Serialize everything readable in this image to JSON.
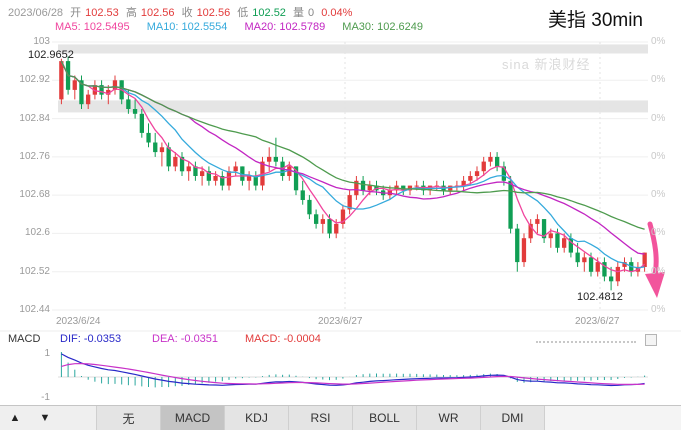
{
  "header": {
    "date": "2023/06/28",
    "open_label": "开",
    "open": "102.53",
    "high_label": "高",
    "high": "102.56",
    "close_label": "收",
    "close": "102.56",
    "low_label": "低",
    "low": "102.52",
    "volume_label": "量",
    "volume": "0",
    "change_percent": "0.04%",
    "title": "美指 30min"
  },
  "ma": {
    "ma5": "MA5: 102.5495",
    "ma10": "MA10: 102.5554",
    "ma20": "MA20: 102.5789",
    "ma30": "MA30: 102.6249"
  },
  "watermark": "sina 新浪财经",
  "axis": {
    "y_labels": [
      "103",
      "102.92",
      "102.84",
      "102.76",
      "102.68",
      "102.6",
      "102.52",
      "102.44"
    ],
    "right_labels": [
      "0%",
      "0%",
      "0%",
      "0%",
      "0%",
      "0%",
      "0%",
      "0%"
    ],
    "x_labels": [
      "2023/6/24",
      "2023/6/27",
      "2023/6/27"
    ]
  },
  "annotations": {
    "high_label": "102.9652",
    "low_label": "102.4812",
    "trend_arrow": "down"
  },
  "macd_panel": {
    "name": "MACD",
    "dif": "DIF: -0.0353",
    "dea": "DEA: -0.0351",
    "macd": "MACD: -0.0004",
    "y_top": "1",
    "y_bottom": "-1"
  },
  "toolbar": {
    "up": "▲",
    "down": "▼",
    "tabs": [
      {
        "label": "无",
        "active": false
      },
      {
        "label": "MACD",
        "active": true
      },
      {
        "label": "KDJ",
        "active": false
      },
      {
        "label": "RSI",
        "active": false
      },
      {
        "label": "BOLL",
        "active": false
      },
      {
        "label": "WR",
        "active": false
      },
      {
        "label": "DMI",
        "active": false
      }
    ]
  },
  "colors": {
    "up": "#e23b3b",
    "down": "#109e54",
    "ma5": "#f0459e",
    "ma10": "#35aadc",
    "ma20": "#c226c2",
    "ma30": "#4e9b4e",
    "dif": "#2929c8",
    "dea": "#c832c8",
    "hist": "#2aa79e",
    "arrow": "#f2549c"
  },
  "chart_data": {
    "type": "candlestick",
    "title": "美指 30min (US Dollar Index, 30-minute candles)",
    "ylim": [
      102.44,
      103.0
    ],
    "y_ticks": [
      103,
      102.92,
      102.84,
      102.76,
      102.68,
      102.6,
      102.52,
      102.44
    ],
    "x_labels": [
      "2023/6/24",
      "2023/6/27",
      "2023/6/27"
    ],
    "overlays": [
      "MA5",
      "MA10",
      "MA20",
      "MA30"
    ],
    "ma_last_values": {
      "MA5": 102.5495,
      "MA10": 102.5554,
      "MA20": 102.5789,
      "MA30": 102.6249
    },
    "marked_high": 102.9652,
    "marked_low": 102.4812,
    "last_bar": {
      "open": 102.53,
      "high": 102.56,
      "low": 102.52,
      "close": 102.56,
      "volume": 0,
      "change_percent": 0.04
    },
    "profile_bands": [
      {
        "from": 102.995,
        "to": 102.976
      },
      {
        "from": 102.878,
        "to": 102.853
      }
    ],
    "sub_chart": {
      "type": "MACD",
      "dif_last": -0.0353,
      "dea_last": -0.0351,
      "macd_last": -0.0004,
      "ylim": [
        -1,
        1
      ]
    },
    "candles": [
      [
        102.88,
        102.9652,
        102.87,
        102.96
      ],
      [
        102.96,
        102.97,
        102.89,
        102.9
      ],
      [
        102.9,
        102.93,
        102.88,
        102.92
      ],
      [
        102.92,
        102.93,
        102.86,
        102.87
      ],
      [
        102.87,
        102.9,
        102.86,
        102.89
      ],
      [
        102.89,
        102.92,
        102.88,
        102.91
      ],
      [
        102.91,
        102.92,
        102.88,
        102.89
      ],
      [
        102.89,
        102.91,
        102.87,
        102.9
      ],
      [
        102.9,
        102.93,
        102.89,
        102.92
      ],
      [
        102.92,
        102.92,
        102.87,
        102.88
      ],
      [
        102.88,
        102.9,
        102.85,
        102.86
      ],
      [
        102.86,
        102.88,
        102.84,
        102.85
      ],
      [
        102.85,
        102.86,
        102.8,
        102.81
      ],
      [
        102.81,
        102.83,
        102.78,
        102.79
      ],
      [
        102.79,
        102.81,
        102.76,
        102.77
      ],
      [
        102.77,
        102.79,
        102.74,
        102.78
      ],
      [
        102.78,
        102.79,
        102.73,
        102.74
      ],
      [
        102.74,
        102.77,
        102.73,
        102.76
      ],
      [
        102.76,
        102.77,
        102.72,
        102.73
      ],
      [
        102.73,
        102.75,
        102.71,
        102.74
      ],
      [
        102.74,
        102.75,
        102.71,
        102.72
      ],
      [
        102.72,
        102.74,
        102.7,
        102.73
      ],
      [
        102.73,
        102.74,
        102.7,
        102.71
      ],
      [
        102.71,
        102.73,
        102.7,
        102.72
      ],
      [
        102.72,
        102.73,
        102.69,
        102.7
      ],
      [
        102.7,
        102.74,
        102.69,
        102.73
      ],
      [
        102.73,
        102.75,
        102.72,
        102.74
      ],
      [
        102.74,
        102.74,
        102.7,
        102.71
      ],
      [
        102.71,
        102.73,
        102.69,
        102.72
      ],
      [
        102.72,
        102.73,
        102.69,
        102.7
      ],
      [
        102.7,
        102.76,
        102.69,
        102.75
      ],
      [
        102.75,
        102.78,
        102.73,
        102.76
      ],
      [
        102.76,
        102.8,
        102.74,
        102.75
      ],
      [
        102.75,
        102.76,
        102.71,
        102.72
      ],
      [
        102.72,
        102.75,
        102.71,
        102.74
      ],
      [
        102.74,
        102.74,
        102.68,
        102.69
      ],
      [
        102.69,
        102.71,
        102.66,
        102.67
      ],
      [
        102.67,
        102.68,
        102.63,
        102.64
      ],
      [
        102.64,
        102.65,
        102.61,
        102.62
      ],
      [
        102.62,
        102.64,
        102.6,
        102.63
      ],
      [
        102.63,
        102.64,
        102.59,
        102.6
      ],
      [
        102.6,
        102.63,
        102.59,
        102.62
      ],
      [
        102.62,
        102.66,
        102.61,
        102.65
      ],
      [
        102.65,
        102.69,
        102.64,
        102.68
      ],
      [
        102.68,
        102.72,
        102.67,
        102.71
      ],
      [
        102.71,
        102.72,
        102.68,
        102.69
      ],
      [
        102.69,
        102.71,
        102.68,
        102.7
      ],
      [
        102.7,
        102.71,
        102.68,
        102.69
      ],
      [
        102.69,
        102.7,
        102.67,
        102.68
      ],
      [
        102.68,
        102.7,
        102.67,
        102.69
      ],
      [
        102.69,
        102.71,
        102.68,
        102.7
      ],
      [
        102.7,
        102.7,
        102.68,
        102.69
      ],
      [
        102.69,
        102.7,
        102.68,
        102.7
      ],
      [
        102.7,
        102.71,
        102.69,
        102.7
      ],
      [
        102.7,
        102.71,
        102.68,
        102.69
      ],
      [
        102.69,
        102.7,
        102.68,
        102.7
      ],
      [
        102.7,
        102.71,
        102.69,
        102.7
      ],
      [
        102.7,
        102.71,
        102.68,
        102.69
      ],
      [
        102.69,
        102.7,
        102.68,
        102.7
      ],
      [
        102.7,
        102.71,
        102.69,
        102.7
      ],
      [
        102.7,
        102.72,
        102.69,
        102.71
      ],
      [
        102.71,
        102.73,
        102.7,
        102.72
      ],
      [
        102.72,
        102.74,
        102.71,
        102.73
      ],
      [
        102.73,
        102.76,
        102.72,
        102.75
      ],
      [
        102.75,
        102.77,
        102.74,
        102.76
      ],
      [
        102.76,
        102.77,
        102.73,
        102.74
      ],
      [
        102.74,
        102.75,
        102.7,
        102.71
      ],
      [
        102.71,
        102.72,
        102.6,
        102.61
      ],
      [
        102.61,
        102.62,
        102.52,
        102.54
      ],
      [
        102.54,
        102.6,
        102.53,
        102.59
      ],
      [
        102.59,
        102.63,
        102.58,
        102.62
      ],
      [
        102.62,
        102.64,
        102.6,
        102.63
      ],
      [
        102.63,
        102.63,
        102.58,
        102.59
      ],
      [
        102.59,
        102.61,
        102.57,
        102.6
      ],
      [
        102.6,
        102.61,
        102.56,
        102.57
      ],
      [
        102.57,
        102.6,
        102.56,
        102.59
      ],
      [
        102.59,
        102.6,
        102.55,
        102.56
      ],
      [
        102.56,
        102.58,
        102.53,
        102.54
      ],
      [
        102.54,
        102.56,
        102.52,
        102.55
      ],
      [
        102.55,
        102.56,
        102.51,
        102.52
      ],
      [
        102.52,
        102.55,
        102.51,
        102.54
      ],
      [
        102.54,
        102.55,
        102.5,
        102.51
      ],
      [
        102.51,
        102.53,
        102.4812,
        102.5
      ],
      [
        102.5,
        102.54,
        102.49,
        102.53
      ],
      [
        102.53,
        102.55,
        102.52,
        102.54
      ],
      [
        102.54,
        102.55,
        102.51,
        102.52
      ],
      [
        102.52,
        102.54,
        102.51,
        102.53
      ],
      [
        102.53,
        102.56,
        102.52,
        102.56
      ]
    ]
  }
}
